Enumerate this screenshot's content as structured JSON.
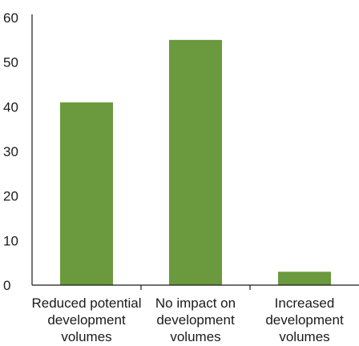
{
  "chart_data": {
    "type": "bar",
    "title": "",
    "xlabel": "",
    "ylabel": "",
    "ylim": [
      0,
      60
    ],
    "yticks": [
      0,
      10,
      20,
      30,
      40,
      50,
      60
    ],
    "grid": false,
    "legend": "none",
    "categories": [
      [
        "Reduced potential",
        "development",
        "volumes"
      ],
      [
        "No impact on",
        "development",
        "volumes"
      ],
      [
        "Increased",
        "development",
        "volumes"
      ]
    ],
    "values": [
      41,
      55,
      3
    ],
    "colors": {
      "bar": "#6a9a3d",
      "axis": "#1a1a1a"
    }
  }
}
